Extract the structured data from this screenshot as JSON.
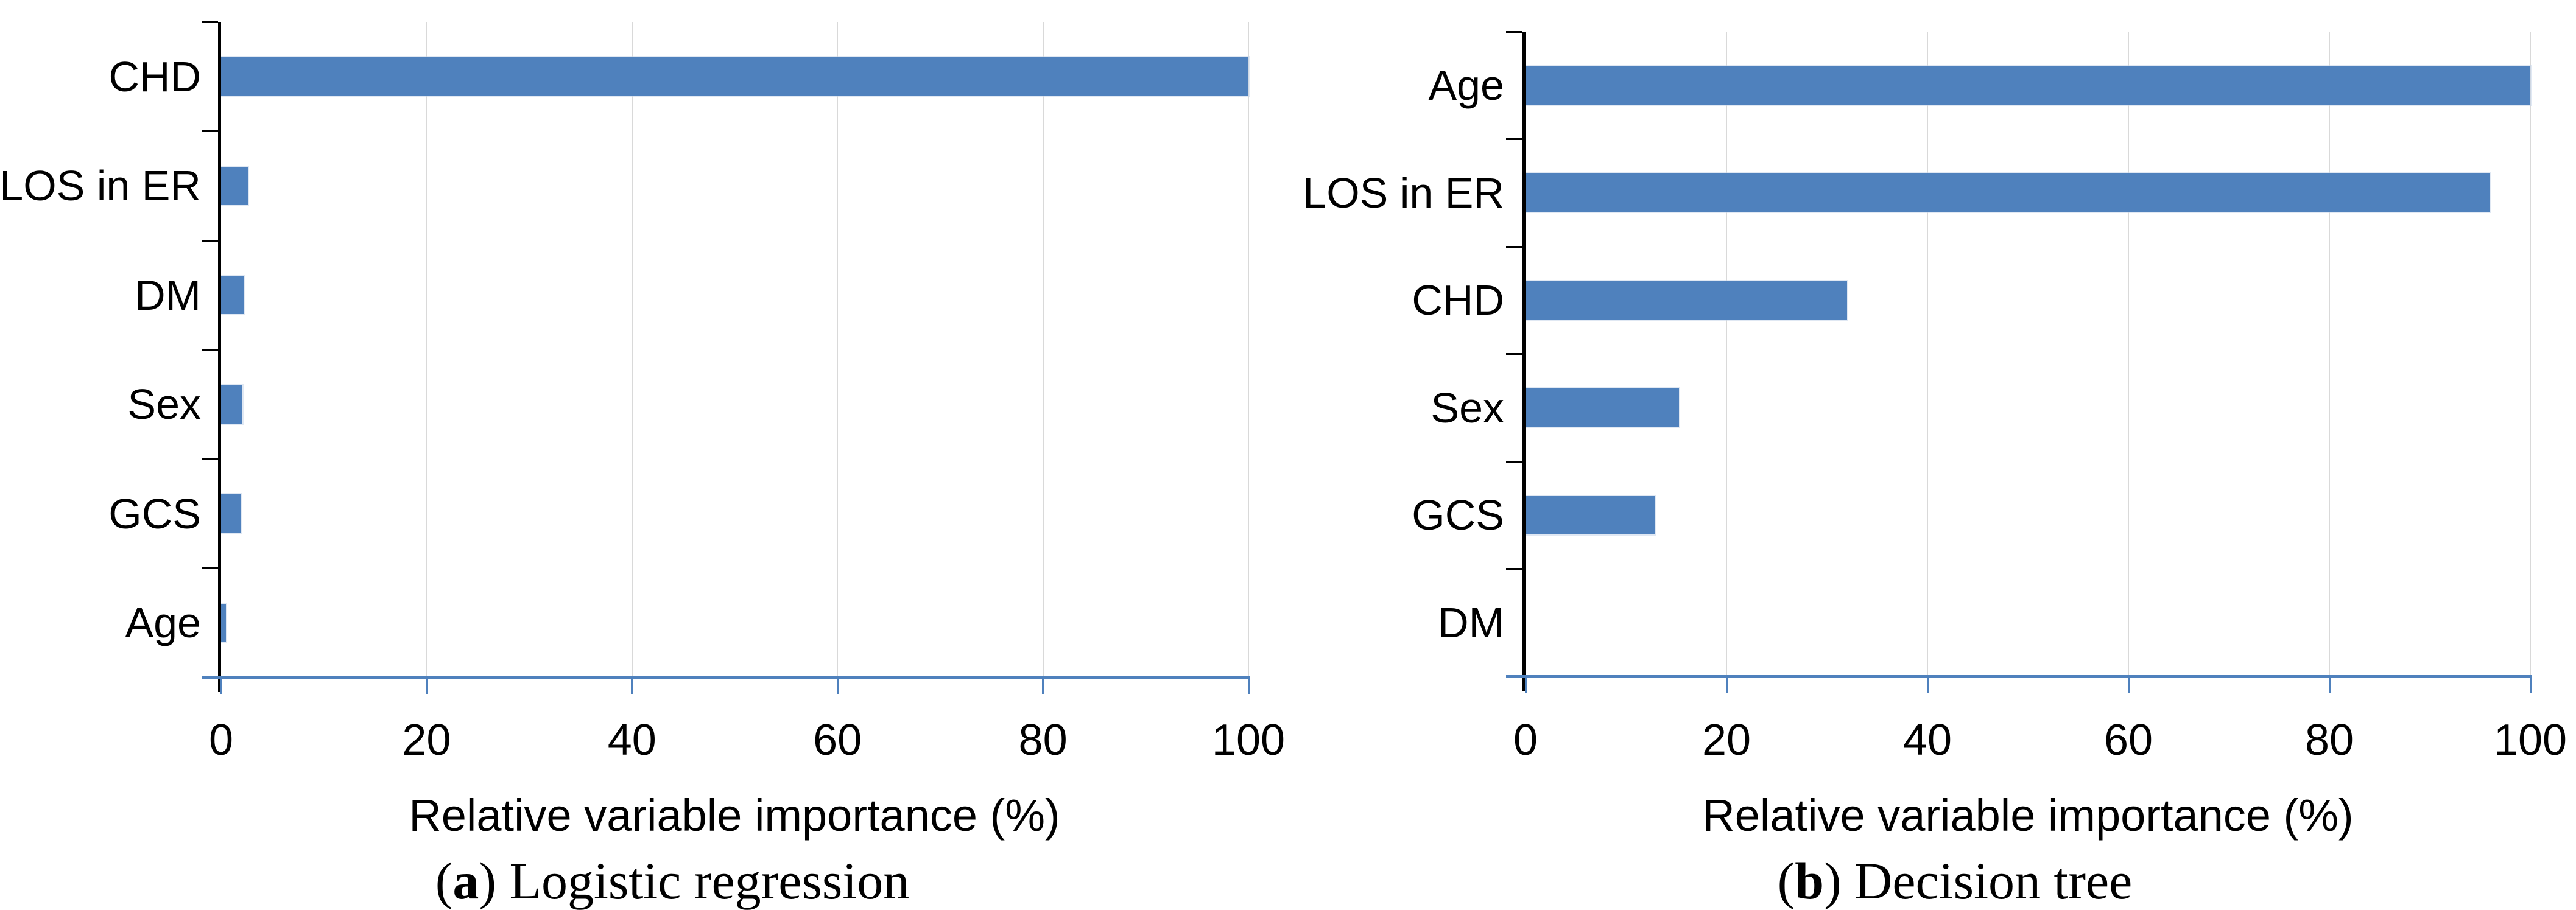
{
  "figure": {
    "background": "#ffffff",
    "colors": {
      "bar_fill": "#4f81bd",
      "bar_edge": "#c7d6ea",
      "gridline": "#d9d9d9",
      "x_axis_line": "#4f81bd",
      "y_axis_line": "#000000",
      "text": "#000000"
    }
  },
  "chart_data": [
    {
      "type": "bar",
      "orientation": "horizontal",
      "panel": "a",
      "categories": [
        "CHD",
        "LOS in ER",
        "DM",
        "Sex",
        "GCS",
        "Age"
      ],
      "values": [
        100,
        2.6,
        2.2,
        2.1,
        1.9,
        0.5
      ],
      "xlabel": "Relative variable importance (%)",
      "ylabel": "",
      "xlim": [
        0,
        100
      ],
      "xticks": [
        0,
        20,
        40,
        60,
        80,
        100
      ],
      "xtick_labels": [
        "0",
        "20",
        "40",
        "60",
        "80",
        "100"
      ],
      "grid": true,
      "legend": false,
      "caption": {
        "open": "(",
        "letter": "a",
        "close": ") ",
        "text": "Logistic regression"
      }
    },
    {
      "type": "bar",
      "orientation": "horizontal",
      "panel": "b",
      "categories": [
        "Age",
        "LOS in ER",
        "CHD",
        "Sex",
        "GCS",
        "DM"
      ],
      "values": [
        100,
        96,
        32,
        15.3,
        12.9,
        0
      ],
      "xlabel": "Relative variable importance (%)",
      "ylabel": "",
      "xlim": [
        0,
        100
      ],
      "xticks": [
        0,
        20,
        40,
        60,
        80,
        100
      ],
      "xtick_labels": [
        "0",
        "20",
        "40",
        "60",
        "80",
        "100"
      ],
      "grid": true,
      "legend": false,
      "caption": {
        "open": "(",
        "letter": "b",
        "close": ") ",
        "text": "Decision tree"
      }
    }
  ]
}
